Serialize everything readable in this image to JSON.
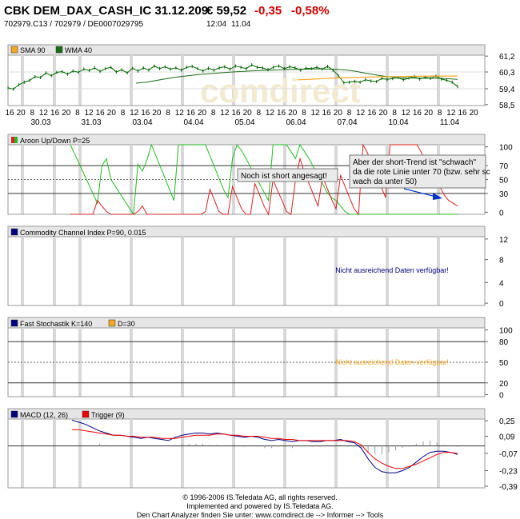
{
  "header": {
    "title": "CBK DEM_DAX_CASH_IC 31.12.209",
    "price": "€ 59,52",
    "change": "-0,35",
    "change_pct": "-0,58%",
    "ids": "702979.C13  /  702979  /  DE0007029795",
    "time": "12:04",
    "date": "11.04"
  },
  "colors": {
    "sma": "#f5a623",
    "wma": "#1a6b1a",
    "aroon_up": "#22bb22",
    "aroon_down": "#dd2222",
    "cci": "#000080",
    "stoch_k": "#000080",
    "stoch_d": "#f5a623",
    "macd": "#000080",
    "trigger": "#ee0000",
    "na_cci": "#000080",
    "na_stoch": "#f5a623"
  },
  "x_axis": {
    "hour_labels": [
      "16",
      "20",
      "8",
      "12",
      "16",
      "20",
      "8",
      "12",
      "16",
      "20",
      "8",
      "12",
      "16",
      "20",
      "8",
      "12",
      "16",
      "20",
      "8",
      "12",
      "16",
      "20",
      "8",
      "12",
      "16",
      "20",
      "8",
      "12",
      "16",
      "20",
      "8",
      "12",
      "16",
      "20",
      "8",
      "12",
      "16",
      "20",
      "8",
      "12",
      "16",
      "20"
    ],
    "date_labels": [
      "30.03",
      "31.03",
      "03.04",
      "04.04",
      "05.04",
      "06.04",
      "07.04",
      "10.04",
      "11.04"
    ]
  },
  "chart_data": [
    {
      "type": "line",
      "panel": "price",
      "legend": [
        "SMA 90",
        "WMA 40"
      ],
      "yticks": [
        "61,2",
        "60,3",
        "59,4",
        "58,5"
      ],
      "ylim": [
        58.5,
        61.2
      ],
      "series": [
        {
          "name": "Kurs",
          "values": [
            59.45,
            59.38,
            59.62,
            59.75,
            59.85,
            60.05,
            60.0,
            60.25,
            60.1,
            60.28,
            60.32,
            60.18,
            60.35,
            60.28,
            60.45,
            60.38,
            60.52,
            60.33,
            60.48,
            60.55,
            60.3,
            60.42,
            60.25,
            60.5,
            60.35,
            60.52,
            60.4,
            60.62,
            60.48,
            60.58,
            60.45,
            60.52,
            60.4,
            60.55,
            60.6,
            60.48,
            60.35,
            60.5,
            60.4,
            60.52,
            60.58,
            60.45,
            60.62,
            60.55,
            60.48,
            60.68,
            60.55,
            60.52,
            60.42,
            60.55,
            60.62,
            60.48,
            60.58,
            60.52,
            60.4,
            60.5,
            60.48,
            60.55,
            60.45,
            60.6,
            60.4,
            60.1,
            59.72,
            59.75,
            59.8,
            59.75,
            59.88,
            59.82,
            59.78,
            59.95,
            59.9,
            59.95,
            60.0,
            59.88,
            59.98,
            60.05,
            59.92,
            60.02,
            59.96,
            60.08,
            59.92,
            59.85,
            59.75,
            59.52
          ]
        },
        {
          "name": "WMA 40",
          "values": [
            59.7,
            59.75,
            59.85,
            59.95,
            60.03,
            60.1,
            60.16,
            60.21,
            60.25,
            60.29,
            60.32,
            60.35,
            60.38,
            60.4,
            60.42,
            60.44,
            60.45,
            60.46,
            60.46,
            60.45,
            60.42,
            60.35,
            60.25,
            60.15,
            60.07,
            60.0,
            59.98,
            59.97,
            59.96,
            59.96,
            59.94,
            59.9
          ]
        },
        {
          "name": "SMA 90",
          "values": [
            59.88,
            59.91,
            59.95,
            59.98,
            60.0,
            60.02,
            60.04,
            60.05,
            60.06,
            60.07,
            60.08,
            60.08,
            60.08
          ]
        }
      ]
    },
    {
      "type": "line",
      "panel": "aroon",
      "legend": [
        "Aroon Up/Down P=25"
      ],
      "yticks": [
        "100",
        "70",
        "50",
        "30",
        "0"
      ],
      "ylim": [
        0,
        100
      ],
      "series": [
        {
          "name": "Aroon Up",
          "values": [
            100,
            86,
            72,
            58,
            44,
            30,
            16,
            70,
            80,
            50,
            40,
            30,
            20,
            10,
            0,
            72,
            62,
            78,
            100,
            84,
            68,
            52,
            36,
            20,
            100,
            100,
            100,
            100,
            100,
            100,
            100,
            84,
            68,
            52,
            36,
            24,
            80,
            100,
            92,
            80,
            68,
            56,
            44,
            32,
            20,
            100,
            100,
            100,
            100,
            90,
            80,
            100,
            90,
            80,
            68,
            56,
            44,
            32,
            24,
            20,
            12,
            4,
            0,
            0,
            0,
            0,
            0,
            0,
            0,
            0,
            0,
            0,
            0,
            0,
            0,
            0,
            0,
            0,
            0,
            0,
            0,
            0,
            0,
            0,
            0,
            0,
            0
          ]
        },
        {
          "name": "Aroon Down",
          "values": [
            0,
            0,
            0,
            0,
            0,
            0,
            20,
            12,
            4,
            0,
            0,
            0,
            0,
            0,
            0,
            4,
            12,
            0,
            0,
            0,
            0,
            0,
            0,
            0,
            0,
            0,
            0,
            0,
            0,
            0,
            4,
            36,
            20,
            4,
            0,
            0,
            40,
            24,
            8,
            0,
            0,
            44,
            28,
            12,
            0,
            50,
            34,
            20,
            4,
            0,
            50,
            80,
            60,
            44,
            28,
            12,
            54,
            38,
            22,
            8,
            56,
            40,
            24,
            8,
            0,
            100,
            88,
            72,
            56,
            40,
            24,
            100,
            100,
            100,
            100,
            100,
            100,
            100,
            88,
            76,
            64,
            52,
            40,
            28,
            20,
            16,
            12
          ]
        }
      ],
      "annotations": [
        "Noch ist short angesagt!",
        "Aber der short-Trend ist \"schwach\", da die rote Linie unter 70 (bzw. sehr schwach da unter 50)"
      ]
    },
    {
      "type": "line",
      "panel": "cci",
      "legend": [
        "Commodity Channel Index P=90, 0.015"
      ],
      "yticks": [
        "12",
        "8",
        "4",
        "0"
      ],
      "ylim": [
        0,
        12
      ],
      "series": [],
      "message": "Nicht ausreichend Daten verfügbar!"
    },
    {
      "type": "line",
      "panel": "stochastic",
      "legend": [
        "Fast Stochastik K=140",
        "D=30"
      ],
      "yticks": [
        "100",
        "80",
        "50",
        "20",
        "0"
      ],
      "ylim": [
        0,
        100
      ],
      "series": [],
      "message": "Nicht ausreichend Daten verfügbar!"
    },
    {
      "type": "line",
      "panel": "macd",
      "legend": [
        "MACD (12, 26)",
        "Trigger (9)"
      ],
      "yticks": [
        "0,25",
        "0,09",
        "-0,07",
        "-0,23",
        "-0,39"
      ],
      "ylim": [
        -0.39,
        0.25
      ],
      "series": [
        {
          "name": "MACD (12, 26)",
          "values": [
            0.24,
            0.22,
            0.2,
            0.17,
            0.14,
            0.12,
            0.1,
            0.1,
            0.09,
            0.08,
            0.07,
            0.08,
            0.07,
            0.06,
            0.05,
            0.08,
            0.1,
            0.11,
            0.12,
            0.12,
            0.11,
            0.12,
            0.11,
            0.1,
            0.09,
            0.08,
            0.09,
            0.08,
            0.06,
            0.05,
            0.06,
            0.05,
            0.04,
            0.05,
            0.05,
            0.04,
            0.04,
            0.05,
            0.05,
            0.06,
            0.04,
            0.03,
            -0.02,
            -0.12,
            -0.2,
            -0.24,
            -0.25,
            -0.25,
            -0.23,
            -0.2,
            -0.15,
            -0.1,
            -0.06,
            -0.05,
            -0.05,
            -0.06,
            -0.08
          ]
        },
        {
          "name": "Trigger (9)",
          "values": [
            0.15,
            0.15,
            0.14,
            0.13,
            0.12,
            0.11,
            0.1,
            0.1,
            0.09,
            0.09,
            0.08,
            0.08,
            0.08,
            0.07,
            0.07,
            0.07,
            0.08,
            0.09,
            0.1,
            0.1,
            0.1,
            0.11,
            0.11,
            0.1,
            0.1,
            0.09,
            0.09,
            0.09,
            0.08,
            0.07,
            0.07,
            0.06,
            0.06,
            0.05,
            0.05,
            0.05,
            0.05,
            0.05,
            0.05,
            0.05,
            0.05,
            0.04,
            0.01,
            -0.06,
            -0.12,
            -0.16,
            -0.19,
            -0.21,
            -0.21,
            -0.19,
            -0.17,
            -0.14,
            -0.11,
            -0.08,
            -0.06,
            -0.06,
            -0.07
          ]
        },
        {
          "name": "Histogram",
          "values": [
            0,
            0,
            0,
            0,
            0.02,
            0.01,
            0,
            0,
            0,
            0,
            0,
            0,
            0,
            0,
            0,
            0.01,
            0.02,
            0.02,
            0.02,
            0.02,
            0.01,
            0.01,
            0,
            0,
            0,
            -0.01,
            0,
            -0.01,
            -0.02,
            -0.02,
            -0.01,
            -0.01,
            -0.02,
            0,
            0,
            -0.01,
            -0.01,
            0,
            0,
            0.01,
            -0.01,
            -0.01,
            -0.03,
            -0.06,
            -0.08,
            -0.08,
            -0.06,
            -0.04,
            -0.02,
            -0.01,
            0.02,
            0.04,
            0.05,
            0.03,
            0.01,
            0,
            -0.01
          ]
        }
      ]
    }
  ],
  "footer": {
    "line1": "© 1996-2006 IS.Teledata AG, all rights reserved.",
    "line2": "Implemented and powered by IS.Teledata AG.",
    "line3": "Den Chart Analyzer finden Sie unter: www.comdirect.de --> Informer --> Tools"
  }
}
